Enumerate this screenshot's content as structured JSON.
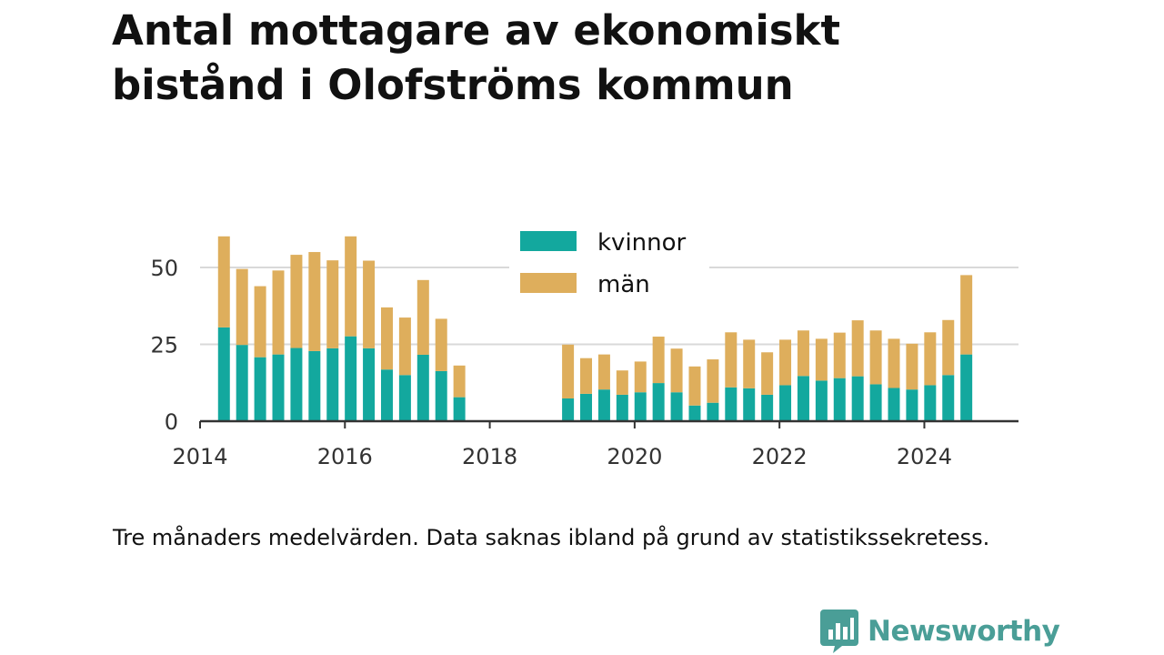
{
  "title": "Antal mottagare av ekonomiskt bistånd i Olofströms kommun",
  "note": "Tre månaders medelvärden. Data saknas ibland på grund av statistikssekretess.",
  "brand": {
    "name": "Newsworthy",
    "icon": "newsworthy-logo-icon",
    "color": "#4a9e97"
  },
  "colors": {
    "kvinnor": "#13a89e",
    "man": "#deae5c",
    "grid": "#d9d9d9",
    "axis": "#333333"
  },
  "chart_data": {
    "type": "bar",
    "stacked": true,
    "title": "",
    "xlabel": "",
    "ylabel": "",
    "ylim": [
      0,
      63
    ],
    "xlim": [
      2014.0,
      2025.3
    ],
    "y_ticks": [
      0,
      25,
      50
    ],
    "x_ticks": [
      2014,
      2016,
      2018,
      2020,
      2022,
      2024
    ],
    "grid": true,
    "legend_position": "top-center",
    "x": [
      2014.33,
      2014.58,
      2014.83,
      2015.08,
      2015.33,
      2015.58,
      2015.83,
      2016.08,
      2016.33,
      2016.58,
      2016.83,
      2017.08,
      2017.33,
      2017.58,
      2019.08,
      2019.33,
      2019.58,
      2019.83,
      2020.08,
      2020.33,
      2020.58,
      2020.83,
      2021.08,
      2021.33,
      2021.58,
      2021.83,
      2022.08,
      2022.33,
      2022.58,
      2022.83,
      2023.08,
      2023.33,
      2023.58,
      2023.83,
      2024.08,
      2024.33,
      2024.58
    ],
    "series": [
      {
        "name": "kvinnor",
        "values": [
          30.5,
          24.8,
          20.8,
          21.7,
          23.8,
          22.8,
          23.7,
          27.6,
          23.7,
          16.8,
          15.0,
          21.6,
          16.3,
          7.8,
          7.4,
          8.9,
          10.3,
          8.6,
          9.4,
          12.4,
          9.4,
          5.1,
          6.0,
          11.0,
          10.7,
          8.6,
          11.7,
          14.7,
          13.2,
          14.0,
          14.6,
          12.0,
          10.8,
          10.3,
          11.7,
          15.0,
          21.7
        ]
      },
      {
        "name": "män",
        "values": [
          29.6,
          24.7,
          23.1,
          27.3,
          30.3,
          32.2,
          28.6,
          32.5,
          28.5,
          20.2,
          18.7,
          24.3,
          17.0,
          10.3,
          17.5,
          11.6,
          11.4,
          7.9,
          10.0,
          15.1,
          14.2,
          12.7,
          14.1,
          17.9,
          15.8,
          13.8,
          14.8,
          14.8,
          13.6,
          14.8,
          18.2,
          17.5,
          16.0,
          14.9,
          17.2,
          17.9,
          25.8
        ]
      }
    ]
  }
}
